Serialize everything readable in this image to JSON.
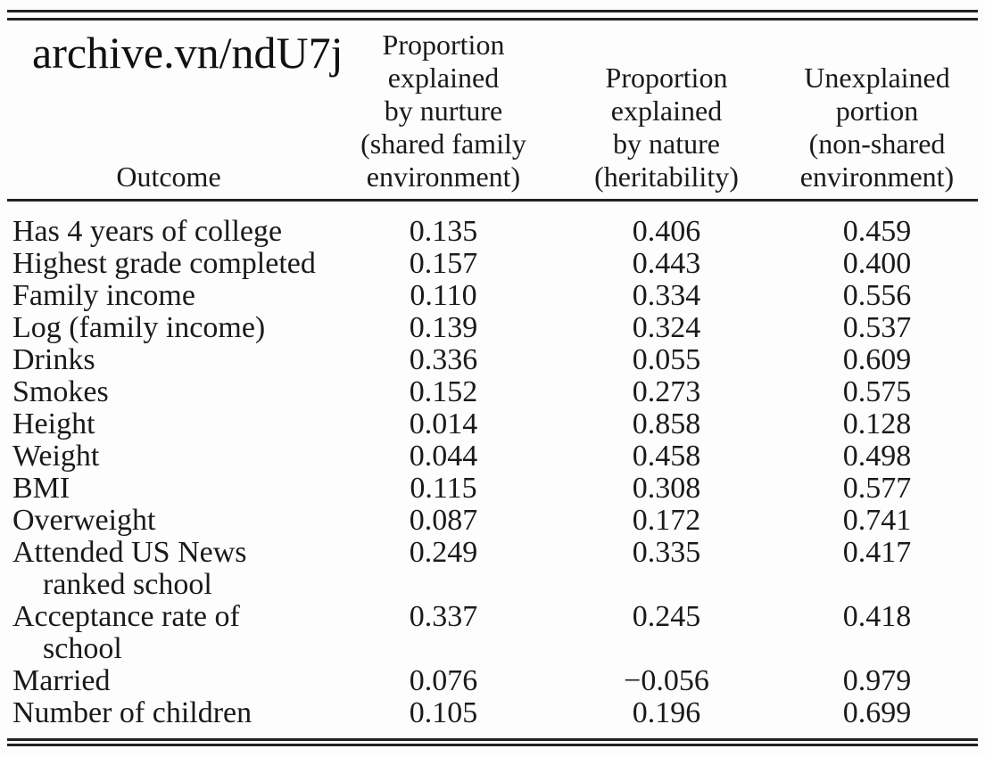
{
  "watermark": {
    "text": "archive.vn/ndU7j"
  },
  "colors": {
    "background": "#fdfdfd",
    "text": "#1a1a1a",
    "rule": "#222222"
  },
  "table": {
    "header": {
      "outcome": [
        "Outcome"
      ],
      "nurture": [
        "Proportion",
        "explained",
        "by nurture",
        "(shared family",
        "environment)"
      ],
      "nature": [
        "Proportion",
        "explained",
        "by nature",
        "(heritability)"
      ],
      "unexplained": [
        "Unexplained",
        "portion",
        "(non-shared",
        "environment)"
      ]
    },
    "rows": [
      {
        "outcome_lines": [
          "Has 4 years of college"
        ],
        "nurture": "0.135",
        "nature": "0.406",
        "unexplained": "0.459"
      },
      {
        "outcome_lines": [
          "Highest grade completed"
        ],
        "nurture": "0.157",
        "nature": "0.443",
        "unexplained": "0.400"
      },
      {
        "outcome_lines": [
          "Family income"
        ],
        "nurture": "0.110",
        "nature": "0.334",
        "unexplained": "0.556"
      },
      {
        "outcome_lines": [
          "Log (family income)"
        ],
        "nurture": "0.139",
        "nature": "0.324",
        "unexplained": "0.537"
      },
      {
        "outcome_lines": [
          "Drinks"
        ],
        "nurture": "0.336",
        "nature": "0.055",
        "unexplained": "0.609"
      },
      {
        "outcome_lines": [
          "Smokes"
        ],
        "nurture": "0.152",
        "nature": "0.273",
        "unexplained": "0.575"
      },
      {
        "outcome_lines": [
          "Height"
        ],
        "nurture": "0.014",
        "nature": "0.858",
        "unexplained": "0.128"
      },
      {
        "outcome_lines": [
          "Weight"
        ],
        "nurture": "0.044",
        "nature": "0.458",
        "unexplained": "0.498"
      },
      {
        "outcome_lines": [
          "BMI"
        ],
        "nurture": "0.115",
        "nature": "0.308",
        "unexplained": "0.577"
      },
      {
        "outcome_lines": [
          "Overweight"
        ],
        "nurture": "0.087",
        "nature": "0.172",
        "unexplained": "0.741"
      },
      {
        "outcome_lines": [
          "Attended US News",
          "ranked school"
        ],
        "nurture": "0.249",
        "nature": "0.335",
        "unexplained": "0.417"
      },
      {
        "outcome_lines": [
          "Acceptance rate of",
          "school"
        ],
        "nurture": "0.337",
        "nature": "0.245",
        "unexplained": "0.418"
      },
      {
        "outcome_lines": [
          "Married"
        ],
        "nurture": "0.076",
        "nature": "−0.056",
        "unexplained": "0.979"
      },
      {
        "outcome_lines": [
          "Number of children"
        ],
        "nurture": "0.105",
        "nature": "0.196",
        "unexplained": "0.699"
      }
    ]
  }
}
